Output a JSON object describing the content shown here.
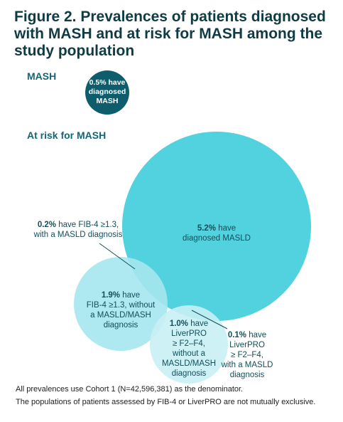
{
  "header": {
    "title": "Figure 2. Prevalences of patients diagnosed with MASH and at risk for MASH among the study population"
  },
  "sections": [
    {
      "label": "MASH"
    },
    {
      "label": "At risk for MASH"
    }
  ],
  "nodes": [
    {
      "value": "0.5%",
      "lines": [
        "have",
        "diagnosed",
        "MASH"
      ]
    },
    {
      "value": "5.2%",
      "lines": [
        "have",
        "diagnosed MASLD"
      ]
    },
    {
      "value": "0.2%",
      "lines": [
        "have FIB-4 ≥1.3,",
        "with a MASLD diagnosis"
      ]
    },
    {
      "value": "1.9%",
      "lines": [
        "have",
        "FIB-4 ≥1.3, without",
        "a MASLD/MASH",
        "diagnosis"
      ]
    },
    {
      "value": "1.0%",
      "lines": [
        "have",
        "LiverPRO",
        "≥ F2–F4,",
        "without a",
        "MASLD/MASH",
        "diagnosis"
      ]
    },
    {
      "value": "0.1%",
      "lines": [
        "have",
        "LiverPRO",
        "≥ F2–F4,",
        "with a MASLD",
        "diagnosis"
      ]
    }
  ],
  "footnotes": [
    "All prevalences use Cohort 1 (N=42,596,381) as the denominator.",
    "The populations of patients assessed by FIB-4 or LiverPRO are not mutually exclusive."
  ]
}
